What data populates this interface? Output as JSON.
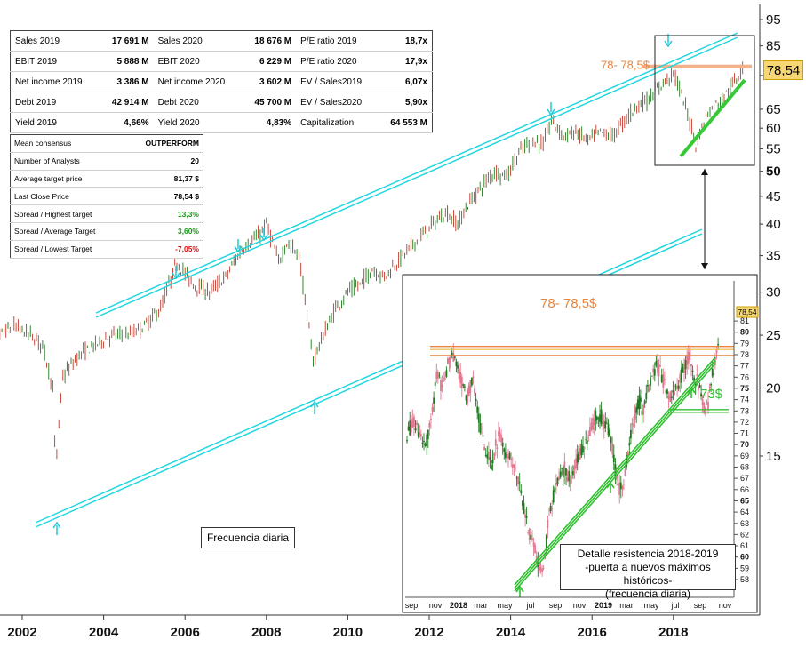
{
  "financials": [
    [
      [
        "Sales 2019",
        "17 691 M"
      ],
      [
        "Sales 2020",
        "18 676 M"
      ],
      [
        "P/E ratio 2019",
        "18,7x"
      ]
    ],
    [
      [
        "EBIT 2019",
        "5 888 M"
      ],
      [
        "EBIT 2020",
        "6 229 M"
      ],
      [
        "P/E ratio 2020",
        "17,9x"
      ]
    ],
    [
      [
        "Net income 2019",
        "3 386 M"
      ],
      [
        "Net income 2020",
        "3 602 M"
      ],
      [
        "EV / Sales2019",
        "6,07x"
      ]
    ],
    [
      [
        "Debt 2019",
        "42 914 M"
      ],
      [
        "Debt 2020",
        "45 700 M"
      ],
      [
        "EV / Sales2020",
        "5,90x"
      ]
    ],
    [
      [
        "Yield 2019",
        "4,66%"
      ],
      [
        "Yield 2020",
        "4,83%"
      ],
      [
        "Capitalization",
        "64 553 M"
      ]
    ]
  ],
  "consensus": [
    {
      "label": "Mean consensus",
      "value": "OUTPERFORM",
      "tone": "normal"
    },
    {
      "label": "Number of Analysts",
      "value": "20",
      "tone": "normal"
    },
    {
      "label": "Average target price",
      "value": "81,37 $",
      "tone": "normal"
    },
    {
      "label": "Last Close Price",
      "value": "78,54 $",
      "tone": "normal"
    },
    {
      "label": "Spread / Highest target",
      "value": "13,3%",
      "tone": "pos"
    },
    {
      "label": "Spread / Average Target",
      "value": "3,60%",
      "tone": "pos"
    },
    {
      "label": "Spread / Lowest Target",
      "value": "-7,05%",
      "tone": "neg"
    }
  ],
  "annotations": {
    "frequency": "Frecuencia diaria",
    "resistance_main": "78- 78,5$",
    "resistance_inset": "78- 78,5$",
    "support_inset": "73$",
    "detail_line1": "Detalle resistencia 2018-2019",
    "detail_line2": "-puerta a nuevos máximos históricos-",
    "detail_line3": "(frecuencia diaria)",
    "last_price": "78,54",
    "inset_last_price": "78,54"
  },
  "chart_data": [
    {
      "type": "line",
      "scale": "log",
      "x_tick_labels": [
        "2002",
        "2004",
        "2006",
        "2008",
        "2010",
        "2012",
        "2014",
        "2016",
        "2018"
      ],
      "y_tick_labels": [
        "15",
        "20",
        "25",
        "30",
        "35",
        "40",
        "45",
        "50",
        "55",
        "60",
        "65",
        "75",
        "85",
        "95"
      ],
      "y_bold_ticks": [
        "50",
        "75"
      ],
      "series": [
        {
          "x": [
            2001.0,
            2001.4,
            2001.8,
            2002.2,
            2002.5,
            2002.75,
            2002.82,
            2003.0,
            2003.4,
            2003.8,
            2004.2,
            2004.6,
            2005.0,
            2005.4,
            2005.8,
            2006.2,
            2006.6,
            2007.0,
            2007.4,
            2007.8,
            2008.0,
            2008.3,
            2008.5,
            2008.8,
            2009.0,
            2009.15,
            2009.4,
            2009.7,
            2010.0,
            2010.3,
            2010.6,
            2010.9,
            2011.2,
            2011.5,
            2011.8,
            2012.1,
            2012.4,
            2012.7,
            2013.0,
            2013.3,
            2013.6,
            2013.9,
            2014.2,
            2014.5,
            2014.8,
            2015.0,
            2015.3,
            2015.6,
            2015.9,
            2016.2,
            2016.5,
            2016.8,
            2017.1,
            2017.4,
            2017.7,
            2018.0,
            2018.2,
            2018.4,
            2018.55,
            2018.8,
            2019.0,
            2019.2,
            2019.4,
            2019.6,
            2019.7
          ],
          "y": [
            26,
            25,
            26,
            25,
            24,
            20,
            14,
            21,
            23,
            24,
            25,
            25,
            26,
            28,
            34,
            31,
            30,
            32,
            36,
            38,
            40,
            34,
            37,
            35,
            27,
            22.5,
            25,
            28,
            30,
            31,
            33,
            32,
            34,
            36,
            38,
            40,
            42,
            40,
            44,
            47,
            50,
            49,
            54,
            57,
            56,
            62,
            58,
            59,
            57,
            59,
            58,
            62,
            66,
            68,
            72,
            76,
            69,
            62,
            56,
            63,
            66,
            68,
            71,
            75,
            78.5
          ]
        }
      ],
      "resistance_level": [
        78,
        78.5
      ],
      "signal_arrows_down": [
        "2005.8",
        "2007.3",
        "2008.0",
        "2014.9",
        "2018.0"
      ],
      "signal_arrows_up": [
        "2002.85",
        "2009.15"
      ]
    },
    {
      "type": "line",
      "title": "Detalle resistencia 2018-2019",
      "x_tick_labels": [
        "sep",
        "nov",
        "2018",
        "mar",
        "may",
        "jul",
        "sep",
        "nov",
        "2019",
        "mar",
        "may",
        "jul",
        "sep",
        "nov"
      ],
      "x_bold_ticks": [
        "2018",
        "2019"
      ],
      "y_tick_labels": [
        "58",
        "59",
        "60",
        "61",
        "62",
        "63",
        "64",
        "65",
        "66",
        "67",
        "68",
        "69",
        "70",
        "71",
        "72",
        "73",
        "74",
        "75",
        "76",
        "77",
        "78",
        "79",
        "80",
        "81"
      ],
      "y_bold_ticks": [
        "60",
        "65",
        "70",
        "75",
        "80"
      ],
      "ylim": [
        57,
        82
      ],
      "series": [
        {
          "x": [
            0,
            0.4,
            0.8,
            1.2,
            1.6,
            1.9,
            2.3,
            2.6,
            3.0,
            3.4,
            3.8,
            4.2,
            4.6,
            4.9,
            5.2,
            5.4,
            5.7,
            6.0,
            6.4,
            6.8,
            7.2,
            7.5,
            7.8,
            8.1,
            8.5,
            8.8,
            9.1,
            9.5,
            9.8,
            10.1,
            10.4,
            10.7,
            11.0,
            11.3,
            11.6,
            11.9,
            12.2,
            12.6,
            13.0,
            13.3,
            13.6,
            13.9,
            14.2,
            14.5,
            14.8,
            15.1,
            15.4,
            15.7,
            16.0,
            16.3,
            16.6,
            16.9,
            17.2,
            17.5,
            17.8,
            18.1,
            18.4,
            18.7,
            19.0,
            19.3,
            19.5,
            19.7,
            19.9
          ],
          "y": [
            71,
            72,
            71,
            70,
            73,
            76,
            75,
            77,
            78,
            76,
            74,
            76,
            72,
            70,
            69,
            68,
            70,
            71,
            69,
            68,
            67,
            64,
            62,
            61,
            58.5,
            60,
            64,
            66,
            67,
            68,
            67,
            68,
            69,
            70,
            71,
            72,
            73,
            72,
            71,
            68,
            66,
            67,
            70,
            72,
            74,
            73,
            75,
            76,
            77,
            76,
            75,
            74,
            75,
            76,
            77,
            78,
            76,
            75,
            73,
            74,
            76,
            77.5,
            78.5
          ]
        }
      ],
      "resistance_level": [
        78,
        78.5
      ],
      "support_level": 73,
      "signal_arrows_up": [
        "may",
        "jul 2018",
        "jun 2019"
      ]
    }
  ]
}
